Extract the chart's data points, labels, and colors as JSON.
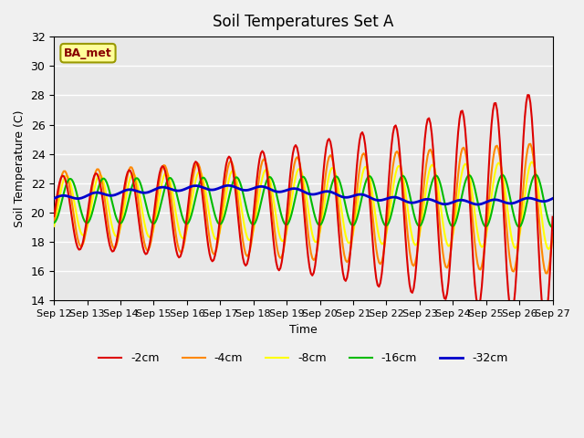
{
  "title": "Soil Temperatures Set A",
  "xlabel": "Time",
  "ylabel": "Soil Temperature (C)",
  "ylim": [
    14,
    32
  ],
  "bg_color": "#e8e8e8",
  "grid_color": "#ffffff",
  "annotation_text": "BA_met",
  "annotation_bg": "#ffff99",
  "annotation_border": "#999900",
  "annotation_text_color": "#880000",
  "legend_labels": [
    "-2cm",
    "-4cm",
    "-8cm",
    "-16cm",
    "-32cm"
  ],
  "line_colors": [
    "#dd0000",
    "#ff8800",
    "#ffff00",
    "#00bb00",
    "#0000cc"
  ],
  "line_widths": [
    1.5,
    1.5,
    1.5,
    1.5,
    2.0
  ],
  "xtick_labels": [
    "Sep 12",
    "Sep 13",
    "Sep 14",
    "Sep 15",
    "Sep 16",
    "Sep 17",
    "Sep 18",
    "Sep 19",
    "Sep 20",
    "Sep 21",
    "Sep 22",
    "Sep 23",
    "Sep 24",
    "Sep 25",
    "Sep 26",
    "Sep 27"
  ],
  "n_days": 15,
  "pts_per_day": 24
}
